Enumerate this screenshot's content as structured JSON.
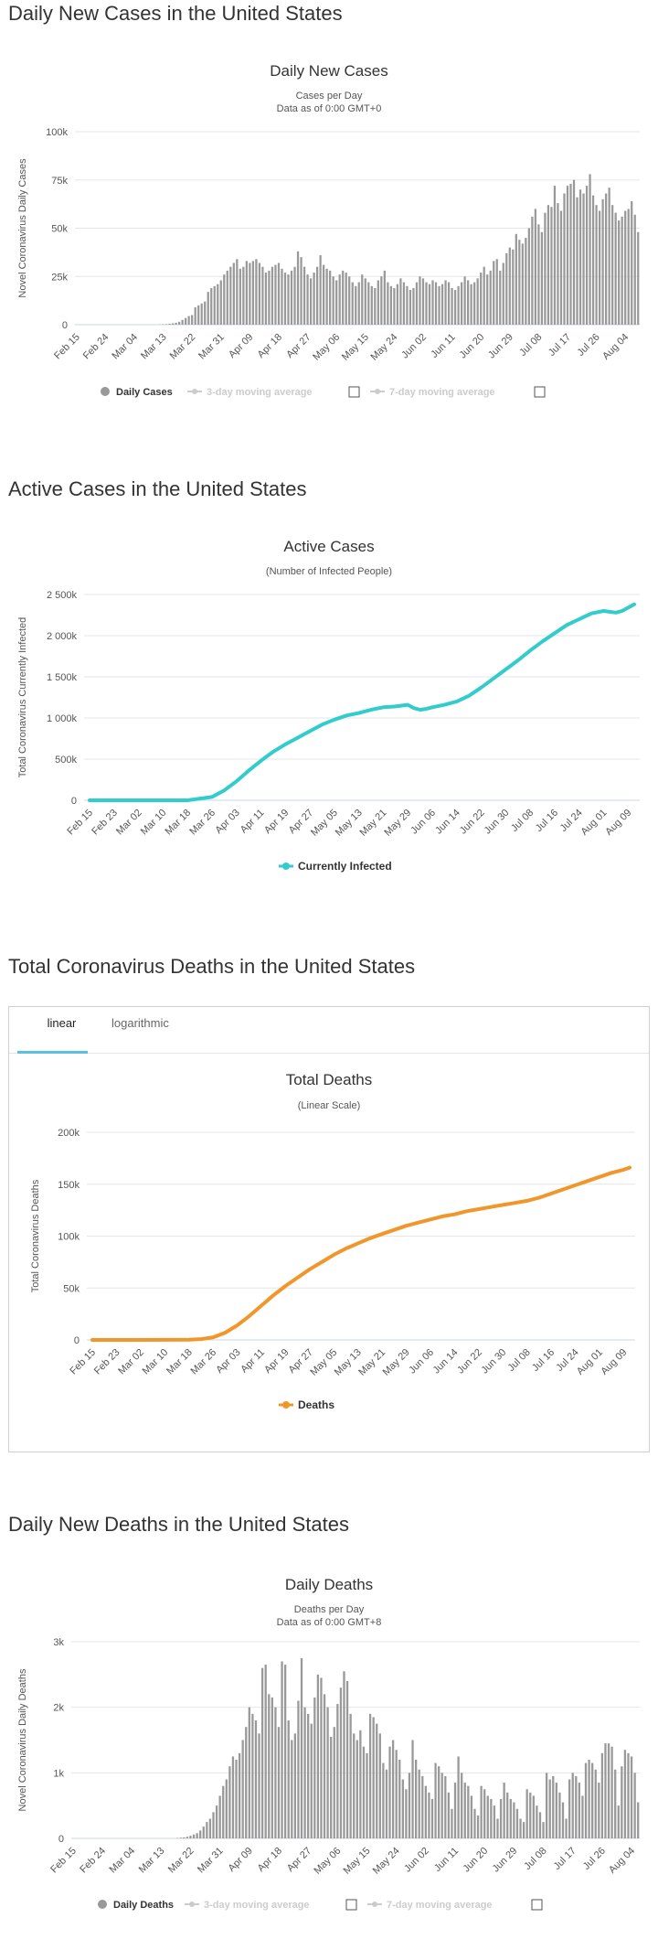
{
  "sections": [
    {
      "title": "Daily New Cases in the United States"
    },
    {
      "title": "Active Cases in the United States"
    },
    {
      "title": "Total Coronavirus Deaths in the United States"
    },
    {
      "title": "Daily New Deaths in the United States"
    }
  ],
  "tabs": {
    "linear": "linear",
    "log": "logarithmic"
  },
  "colors": {
    "bars": "#999999",
    "active": "#33cccc",
    "deaths": "#f0962b",
    "grid": "#e6e6e6",
    "tab_accent": "#5bc0de"
  },
  "chart_data": [
    {
      "type": "bar",
      "title": "Daily New Cases",
      "subtitle": "Cases per Day",
      "subtitle2": "Data as of 0:00 GMT+0",
      "ylabel": "Novel Coronavirus Daily Cases",
      "ylim": [
        0,
        100000
      ],
      "yticks": [
        "0",
        "25k",
        "50k",
        "75k",
        "100k"
      ],
      "x_start": "Feb 15",
      "xticks": [
        "Feb 15",
        "Feb 24",
        "Mar 04",
        "Mar 13",
        "Mar 22",
        "Mar 31",
        "Apr 09",
        "Apr 18",
        "Apr 27",
        "May 06",
        "May 15",
        "May 24",
        "Jun 02",
        "Jun 11",
        "Jun 20",
        "Jun 29",
        "Jul 08",
        "Jul 17",
        "Jul 26",
        "Aug 04"
      ],
      "legend": [
        "Daily Cases",
        "3-day moving average",
        "7-day moving average"
      ],
      "series": [
        {
          "name": "Daily Cases",
          "values": [
            0,
            0,
            0,
            0,
            0,
            0,
            0,
            0,
            0,
            0,
            0,
            0,
            0,
            0,
            0,
            0,
            0,
            0,
            0,
            0,
            0,
            0,
            0,
            0,
            0,
            0,
            100,
            200,
            300,
            500,
            700,
            1000,
            1500,
            2500,
            3500,
            4500,
            5000,
            9000,
            10000,
            11000,
            12000,
            17000,
            19000,
            20000,
            21000,
            23000,
            26000,
            28000,
            30000,
            32000,
            34000,
            29000,
            30000,
            33000,
            32000,
            33000,
            34000,
            32000,
            30000,
            27000,
            28000,
            30000,
            31000,
            32000,
            29000,
            27000,
            26000,
            28000,
            30000,
            38000,
            35000,
            30000,
            26000,
            24000,
            27000,
            30000,
            36000,
            31000,
            29000,
            28000,
            25000,
            23000,
            26000,
            28000,
            27000,
            25000,
            22000,
            20000,
            22000,
            26000,
            24000,
            22000,
            20000,
            19000,
            23000,
            25000,
            28000,
            22000,
            20000,
            19000,
            21000,
            24000,
            22000,
            20000,
            18000,
            19000,
            22000,
            25000,
            24000,
            22000,
            21000,
            23000,
            22000,
            20000,
            21000,
            23000,
            22000,
            19000,
            18000,
            20000,
            22000,
            25000,
            23000,
            21000,
            22000,
            24000,
            27000,
            30000,
            26000,
            28000,
            33000,
            34000,
            28000,
            32000,
            37000,
            40000,
            39000,
            47000,
            44000,
            42000,
            45000,
            50000,
            56000,
            60000,
            52000,
            48000,
            58000,
            62000,
            61000,
            72000,
            63000,
            59000,
            68000,
            72000,
            73000,
            75000,
            66000,
            70000,
            68000,
            72000,
            78000,
            67000,
            62000,
            59000,
            65000,
            68000,
            71000,
            62000,
            58000,
            54000,
            56000,
            59000,
            60000,
            64000,
            57000,
            48000
          ]
        }
      ]
    },
    {
      "type": "line",
      "title": "Active Cases",
      "subtitle": "(Number of Infected People)",
      "ylabel": "Total Coronavirus Currently Infected",
      "ylim": [
        0,
        2500000
      ],
      "yticks": [
        "0",
        "500k",
        "1 000k",
        "1 500k",
        "2 000k",
        "2 500k"
      ],
      "xticks": [
        "Feb 15",
        "Feb 23",
        "Mar 02",
        "Mar 10",
        "Mar 18",
        "Mar 26",
        "Apr 03",
        "Apr 11",
        "Apr 19",
        "Apr 27",
        "May 05",
        "May 13",
        "May 21",
        "May 29",
        "Jun 06",
        "Jun 14",
        "Jun 22",
        "Jun 30",
        "Jul 08",
        "Jul 16",
        "Jul 24",
        "Aug 01",
        "Aug 09"
      ],
      "x_days": [
        0,
        8,
        16,
        24,
        32,
        40,
        44,
        48,
        52,
        56,
        60,
        64,
        68,
        72,
        76,
        80,
        84,
        88,
        92,
        96,
        100,
        104,
        106,
        108,
        110,
        112,
        116,
        120,
        124,
        128,
        132,
        136,
        140,
        144,
        148,
        152,
        156,
        160,
        164,
        168,
        172,
        174,
        176,
        178
      ],
      "series": [
        {
          "name": "Currently Infected",
          "values": [
            0,
            0,
            0,
            0,
            0,
            40000,
            120000,
            230000,
            360000,
            480000,
            590000,
            680000,
            760000,
            840000,
            920000,
            980000,
            1030000,
            1060000,
            1100000,
            1130000,
            1140000,
            1160000,
            1120000,
            1100000,
            1110000,
            1130000,
            1160000,
            1200000,
            1270000,
            1370000,
            1480000,
            1590000,
            1700000,
            1820000,
            1930000,
            2030000,
            2130000,
            2200000,
            2270000,
            2300000,
            2280000,
            2300000,
            2340000,
            2380000
          ]
        }
      ]
    },
    {
      "type": "line",
      "title": "Total Deaths",
      "subtitle": "(Linear Scale)",
      "ylabel": "Total Coronavirus Deaths",
      "ylim": [
        0,
        200000
      ],
      "yticks": [
        "0",
        "50k",
        "100k",
        "150k",
        "200k"
      ],
      "xticks": [
        "Feb 15",
        "Feb 23",
        "Mar 02",
        "Mar 10",
        "Mar 18",
        "Mar 26",
        "Apr 03",
        "Apr 11",
        "Apr 19",
        "Apr 27",
        "May 05",
        "May 13",
        "May 21",
        "May 29",
        "Jun 06",
        "Jun 14",
        "Jun 22",
        "Jun 30",
        "Jul 08",
        "Jul 16",
        "Jul 24",
        "Aug 01",
        "Aug 09"
      ],
      "x_days": [
        0,
        16,
        32,
        36,
        40,
        44,
        48,
        52,
        56,
        60,
        64,
        68,
        72,
        76,
        80,
        84,
        88,
        92,
        96,
        100,
        104,
        108,
        112,
        116,
        120,
        124,
        128,
        132,
        136,
        140,
        144,
        148,
        152,
        156,
        160,
        164,
        168,
        172,
        176,
        178
      ],
      "series": [
        {
          "name": "Deaths",
          "values": [
            0,
            0,
            200,
            800,
            2500,
            7000,
            14000,
            23000,
            33000,
            43000,
            52000,
            60000,
            68000,
            75000,
            82000,
            88000,
            93000,
            98000,
            102000,
            106000,
            110000,
            113000,
            116000,
            119000,
            121000,
            124000,
            126000,
            128000,
            130000,
            132000,
            134000,
            137000,
            141000,
            145000,
            149000,
            153000,
            157000,
            161000,
            164000,
            166000
          ]
        }
      ]
    },
    {
      "type": "bar",
      "title": "Daily Deaths",
      "subtitle": "Deaths per Day",
      "subtitle2": "Data as of 0:00 GMT+8",
      "ylabel": "Novel Coronavirus Daily Deaths",
      "ylim": [
        0,
        3000
      ],
      "yticks": [
        "0",
        "1k",
        "2k",
        "3k"
      ],
      "x_start": "Feb 15",
      "xticks": [
        "Feb 15",
        "Feb 24",
        "Mar 04",
        "Mar 13",
        "Mar 22",
        "Mar 31",
        "Apr 09",
        "Apr 18",
        "Apr 27",
        "May 06",
        "May 15",
        "May 24",
        "Jun 02",
        "Jun 11",
        "Jun 20",
        "Jun 29",
        "Jul 08",
        "Jul 17",
        "Jul 26",
        "Aug 04"
      ],
      "legend": [
        "Daily Deaths",
        "3-day moving average",
        "7-day moving average"
      ],
      "series": [
        {
          "name": "Daily Deaths",
          "values": [
            0,
            0,
            0,
            0,
            0,
            0,
            0,
            0,
            0,
            0,
            0,
            0,
            0,
            0,
            0,
            0,
            0,
            0,
            0,
            0,
            0,
            0,
            0,
            0,
            0,
            0,
            0,
            0,
            0,
            0,
            0,
            0,
            5,
            10,
            15,
            25,
            40,
            60,
            80,
            120,
            180,
            250,
            300,
            400,
            500,
            650,
            800,
            900,
            1100,
            1250,
            1200,
            1300,
            1500,
            1700,
            2000,
            1900,
            1800,
            1600,
            2600,
            2650,
            2200,
            2150,
            2000,
            1700,
            2700,
            2650,
            1800,
            1500,
            1600,
            2100,
            2750,
            2000,
            1900,
            1750,
            2150,
            2500,
            2450,
            2200,
            2000,
            1550,
            1700,
            2050,
            2300,
            2550,
            2400,
            1900,
            1600,
            1500,
            1650,
            1400,
            1300,
            1900,
            1850,
            1750,
            1600,
            1150,
            1050,
            1400,
            1500,
            1350,
            1200,
            900,
            750,
            1000,
            1500,
            1200,
            1050,
            950,
            800,
            700,
            600,
            1150,
            1100,
            1000,
            950,
            700,
            450,
            850,
            1250,
            1000,
            850,
            800,
            650,
            450,
            350,
            800,
            750,
            650,
            600,
            500,
            300,
            600,
            850,
            700,
            600,
            550,
            450,
            300,
            250,
            750,
            700,
            650,
            500,
            400,
            250,
            1000,
            900,
            950,
            850,
            700,
            550,
            300,
            900,
            1000,
            950,
            850,
            650,
            1150,
            1200,
            1150,
            1050,
            850,
            1300,
            1450,
            1450,
            1400,
            1050,
            500,
            1100,
            1350,
            1300,
            1250,
            1000,
            550
          ]
        }
      ]
    }
  ]
}
